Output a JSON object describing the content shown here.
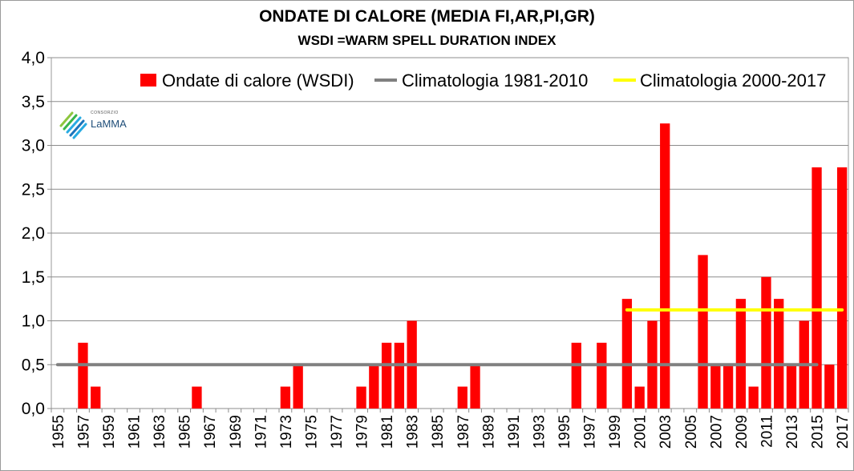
{
  "chart_data": {
    "type": "bar",
    "title": "ONDATE DI CALORE (MEDIA FI,AR,PI,GR)",
    "subtitle": "WSDI =WARM SPELL DURATION INDEX",
    "xlabel": "",
    "ylabel": "",
    "ylim": [
      0,
      4
    ],
    "yticks": [
      "0,0",
      "0,5",
      "1,0",
      "1,5",
      "2,0",
      "2,5",
      "3,0",
      "3,5",
      "4,0"
    ],
    "xtick_labels": [
      "1955",
      "1957",
      "1959",
      "1961",
      "1963",
      "1965",
      "1967",
      "1969",
      "1971",
      "1973",
      "1975",
      "1977",
      "1979",
      "1981",
      "1983",
      "1985",
      "1987",
      "1989",
      "1991",
      "1993",
      "1995",
      "1997",
      "1999",
      "2001",
      "2003",
      "2005",
      "2007",
      "2009",
      "2011",
      "2013",
      "2015",
      "2017"
    ],
    "grid": true,
    "legend_position": "top-right",
    "categories": [
      1955,
      1956,
      1957,
      1958,
      1959,
      1960,
      1961,
      1962,
      1963,
      1964,
      1965,
      1966,
      1967,
      1968,
      1969,
      1970,
      1971,
      1972,
      1973,
      1974,
      1975,
      1976,
      1977,
      1978,
      1979,
      1980,
      1981,
      1982,
      1983,
      1984,
      1985,
      1986,
      1987,
      1988,
      1989,
      1990,
      1991,
      1992,
      1993,
      1994,
      1995,
      1996,
      1997,
      1998,
      1999,
      2000,
      2001,
      2002,
      2003,
      2004,
      2005,
      2006,
      2007,
      2008,
      2009,
      2010,
      2011,
      2012,
      2013,
      2014,
      2015,
      2016,
      2017
    ],
    "series": [
      {
        "name": "Ondate di calore (WSDI)",
        "type": "bar",
        "color": "#ff0000",
        "values": [
          0,
          0,
          0.75,
          0.25,
          0,
          0,
          0,
          0,
          0,
          0,
          0,
          0.25,
          0,
          0,
          0,
          0,
          0,
          0,
          0.25,
          0.5,
          0,
          0,
          0,
          0,
          0.25,
          0.5,
          0.75,
          0.75,
          1.0,
          0,
          0,
          0,
          0.25,
          0.5,
          0,
          0,
          0,
          0,
          0,
          0,
          0,
          0.75,
          0,
          0.75,
          0,
          1.25,
          0.25,
          1.0,
          3.25,
          0,
          0,
          1.75,
          0.5,
          0.5,
          1.25,
          0.25,
          1.5,
          1.25,
          0.5,
          1.0,
          2.75,
          0.5,
          2.75
        ]
      },
      {
        "name": "Climatologia 1981-2010",
        "type": "line",
        "color": "#808080",
        "x_range": [
          1955,
          2015
        ],
        "value": 0.5
      },
      {
        "name": "Climatologia 2000-2017",
        "type": "line",
        "color": "#ffff00",
        "x_range": [
          2000,
          2017
        ],
        "value": 1.125
      }
    ]
  },
  "logo": {
    "small_text": "CONSORZIO",
    "name": "LaMMA"
  }
}
